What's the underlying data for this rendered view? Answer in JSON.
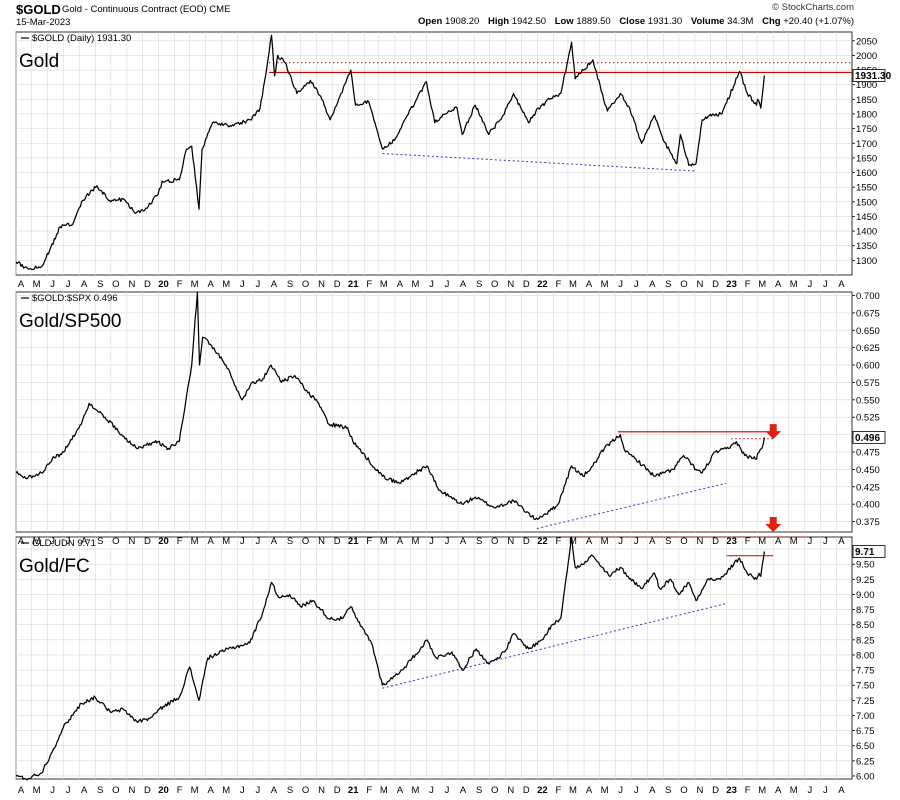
{
  "header": {
    "symbol": "$GOLD",
    "description": "Gold - Continuous Contract (EOD) CME",
    "date": "15-Mar-2023",
    "credit": "© StockCharts.com",
    "stats": [
      {
        "label": "Open",
        "value": "1908.20"
      },
      {
        "label": "High",
        "value": "1942.50"
      },
      {
        "label": "Low",
        "value": "1889.50"
      },
      {
        "label": "Close",
        "value": "1931.30"
      },
      {
        "label": "Volume",
        "value": "34.3M"
      },
      {
        "label": "Chg",
        "value": "+20.40 (+1.07%)"
      }
    ]
  },
  "colors": {
    "price_line": "#000000",
    "resistance": "#cc0000",
    "trendline": "#3333cc",
    "arrow": "#e02010",
    "grid": "#d8d8d8"
  },
  "x_axis": {
    "labels": [
      "A",
      "M",
      "J",
      "J",
      "A",
      "S",
      "O",
      "N",
      "D",
      "20",
      "F",
      "M",
      "A",
      "M",
      "J",
      "J",
      "A",
      "S",
      "O",
      "N",
      "D",
      "21",
      "F",
      "M",
      "A",
      "M",
      "J",
      "J",
      "A",
      "S",
      "O",
      "N",
      "D",
      "22",
      "F",
      "M",
      "A",
      "M",
      "J",
      "J",
      "A",
      "S",
      "O",
      "N",
      "D",
      "23",
      "F",
      "M",
      "A",
      "M",
      "J",
      "J",
      "A"
    ],
    "year_labels": [
      "20",
      "21",
      "22",
      "23"
    ]
  },
  "chart_data": [
    {
      "type": "line",
      "panel_label": "$GOLD (Daily) 1931.30",
      "title": "Gold",
      "last_value_label": "1931.30",
      "ylim": [
        1250,
        2080
      ],
      "y_ticks": [
        1300,
        1350,
        1400,
        1450,
        1500,
        1550,
        1600,
        1650,
        1700,
        1750,
        1800,
        1850,
        1900,
        1950,
        2000,
        2050
      ],
      "y_tick_labels": [
        "1300",
        "1350",
        "1400",
        "1450",
        "1500",
        "1550",
        "1600",
        "1650",
        "1700",
        "1750",
        "1800",
        "1850",
        "1900",
        "1950",
        "2000",
        "2050"
      ],
      "x_start": "2019-04-01",
      "x_end": "2023-08-31",
      "anchors": [
        [
          "2019-04-01",
          1295
        ],
        [
          "2019-04-25",
          1270
        ],
        [
          "2019-05-20",
          1278
        ],
        [
          "2019-06-05",
          1335
        ],
        [
          "2019-06-25",
          1415
        ],
        [
          "2019-07-20",
          1425
        ],
        [
          "2019-08-08",
          1505
        ],
        [
          "2019-09-04",
          1555
        ],
        [
          "2019-10-01",
          1500
        ],
        [
          "2019-10-25",
          1510
        ],
        [
          "2019-11-15",
          1465
        ],
        [
          "2019-12-05",
          1470
        ],
        [
          "2019-12-31",
          1525
        ],
        [
          "2020-01-08",
          1570
        ],
        [
          "2020-02-10",
          1575
        ],
        [
          "2020-02-24",
          1680
        ],
        [
          "2020-03-05",
          1690
        ],
        [
          "2020-03-19",
          1475
        ],
        [
          "2020-03-25",
          1680
        ],
        [
          "2020-04-14",
          1770
        ],
        [
          "2020-05-18",
          1760
        ],
        [
          "2020-06-26",
          1780
        ],
        [
          "2020-07-15",
          1820
        ],
        [
          "2020-07-28",
          1960
        ],
        [
          "2020-08-06",
          2069
        ],
        [
          "2020-08-12",
          1930
        ],
        [
          "2020-08-18",
          2000
        ],
        [
          "2020-09-01",
          1975
        ],
        [
          "2020-09-24",
          1870
        ],
        [
          "2020-10-20",
          1915
        ],
        [
          "2020-11-09",
          1860
        ],
        [
          "2020-11-27",
          1780
        ],
        [
          "2020-12-16",
          1860
        ],
        [
          "2021-01-06",
          1950
        ],
        [
          "2021-01-15",
          1830
        ],
        [
          "2021-02-10",
          1840
        ],
        [
          "2021-03-08",
          1680
        ],
        [
          "2021-03-31",
          1710
        ],
        [
          "2021-04-20",
          1780
        ],
        [
          "2021-05-10",
          1840
        ],
        [
          "2021-06-01",
          1910
        ],
        [
          "2021-06-17",
          1770
        ],
        [
          "2021-07-07",
          1800
        ],
        [
          "2021-07-30",
          1820
        ],
        [
          "2021-08-09",
          1730
        ],
        [
          "2021-09-03",
          1830
        ],
        [
          "2021-09-29",
          1730
        ],
        [
          "2021-10-25",
          1790
        ],
        [
          "2021-11-16",
          1870
        ],
        [
          "2021-12-15",
          1770
        ],
        [
          "2022-01-03",
          1820
        ],
        [
          "2022-01-25",
          1850
        ],
        [
          "2022-02-15",
          1870
        ],
        [
          "2022-03-08",
          2045
        ],
        [
          "2022-03-15",
          1920
        ],
        [
          "2022-03-31",
          1950
        ],
        [
          "2022-04-18",
          1985
        ],
        [
          "2022-05-16",
          1810
        ],
        [
          "2022-06-10",
          1870
        ],
        [
          "2022-06-28",
          1820
        ],
        [
          "2022-07-21",
          1700
        ],
        [
          "2022-08-15",
          1795
        ],
        [
          "2022-09-01",
          1710
        ],
        [
          "2022-09-27",
          1630
        ],
        [
          "2022-10-04",
          1730
        ],
        [
          "2022-10-20",
          1625
        ],
        [
          "2022-11-03",
          1630
        ],
        [
          "2022-11-15",
          1780
        ],
        [
          "2022-12-05",
          1800
        ],
        [
          "2022-12-23",
          1800
        ],
        [
          "2023-01-26",
          1945
        ],
        [
          "2023-02-10",
          1870
        ],
        [
          "2023-02-28",
          1830
        ],
        [
          "2023-03-02",
          1850
        ],
        [
          "2023-03-08",
          1820
        ],
        [
          "2023-03-15",
          1931.3
        ]
      ],
      "resistance_levels": [
        {
          "style": "solid",
          "value": 1942,
          "x_from": "2020-08-01",
          "x_to": "2023-08-31"
        },
        {
          "style": "dotted",
          "value": 1975,
          "x_from": "2020-08-01",
          "x_to": "2023-08-31"
        }
      ],
      "trendline": {
        "from": [
          "2021-03-08",
          1665
        ],
        "to": [
          "2022-11-03",
          1605
        ]
      }
    },
    {
      "type": "line",
      "panel_label": "$GOLD:$SPX 0.496",
      "title": "Gold/SP500",
      "last_value_label": "0.496",
      "ylim": [
        0.36,
        0.705
      ],
      "y_ticks": [
        0.375,
        0.4,
        0.425,
        0.45,
        0.475,
        0.5,
        0.525,
        0.55,
        0.575,
        0.6,
        0.625,
        0.65,
        0.675,
        0.7
      ],
      "y_tick_labels": [
        "0.375",
        "0.400",
        "0.425",
        "0.450",
        "0.475",
        "0.500",
        "0.525",
        "0.550",
        "0.575",
        "0.600",
        "0.625",
        "0.650",
        "0.675",
        "0.700"
      ],
      "x_start": "2019-04-01",
      "x_end": "2023-08-31",
      "anchors": [
        [
          "2019-04-01",
          0.445
        ],
        [
          "2019-04-20",
          0.437
        ],
        [
          "2019-05-20",
          0.445
        ],
        [
          "2019-06-10",
          0.465
        ],
        [
          "2019-07-02",
          0.475
        ],
        [
          "2019-08-05",
          0.515
        ],
        [
          "2019-08-20",
          0.545
        ],
        [
          "2019-09-20",
          0.525
        ],
        [
          "2019-10-15",
          0.505
        ],
        [
          "2019-11-20",
          0.48
        ],
        [
          "2019-12-31",
          0.49
        ],
        [
          "2020-01-20",
          0.48
        ],
        [
          "2020-02-10",
          0.49
        ],
        [
          "2020-02-25",
          0.56
        ],
        [
          "2020-03-05",
          0.6
        ],
        [
          "2020-03-16",
          0.705
        ],
        [
          "2020-03-20",
          0.6
        ],
        [
          "2020-03-26",
          0.64
        ],
        [
          "2020-04-10",
          0.63
        ],
        [
          "2020-05-10",
          0.6
        ],
        [
          "2020-06-10",
          0.55
        ],
        [
          "2020-06-30",
          0.575
        ],
        [
          "2020-07-20",
          0.58
        ],
        [
          "2020-08-05",
          0.6
        ],
        [
          "2020-08-25",
          0.575
        ],
        [
          "2020-09-20",
          0.585
        ],
        [
          "2020-10-15",
          0.56
        ],
        [
          "2020-11-05",
          0.545
        ],
        [
          "2020-11-25",
          0.515
        ],
        [
          "2020-12-31",
          0.51
        ],
        [
          "2021-01-10",
          0.49
        ],
        [
          "2021-03-08",
          0.44
        ],
        [
          "2021-04-10",
          0.43
        ],
        [
          "2021-05-10",
          0.445
        ],
        [
          "2021-06-02",
          0.455
        ],
        [
          "2021-06-25",
          0.42
        ],
        [
          "2021-08-09",
          0.4
        ],
        [
          "2021-09-03",
          0.41
        ],
        [
          "2021-10-10",
          0.395
        ],
        [
          "2021-11-16",
          0.405
        ],
        [
          "2021-12-28",
          0.378
        ],
        [
          "2022-01-25",
          0.39
        ],
        [
          "2022-02-10",
          0.4
        ],
        [
          "2022-03-08",
          0.455
        ],
        [
          "2022-03-30",
          0.44
        ],
        [
          "2022-04-18",
          0.455
        ],
        [
          "2022-05-10",
          0.48
        ],
        [
          "2022-06-10",
          0.5
        ],
        [
          "2022-06-20",
          0.475
        ],
        [
          "2022-07-10",
          0.465
        ],
        [
          "2022-08-15",
          0.44
        ],
        [
          "2022-09-20",
          0.45
        ],
        [
          "2022-10-10",
          0.47
        ],
        [
          "2022-11-03",
          0.45
        ],
        [
          "2022-11-15",
          0.445
        ],
        [
          "2022-12-10",
          0.475
        ],
        [
          "2023-01-05",
          0.48
        ],
        [
          "2023-01-20",
          0.49
        ],
        [
          "2023-02-05",
          0.47
        ],
        [
          "2023-02-28",
          0.465
        ],
        [
          "2023-03-02",
          0.473
        ],
        [
          "2023-03-10",
          0.48
        ],
        [
          "2023-03-15",
          0.496
        ]
      ],
      "resistance_levels": [
        {
          "style": "solid",
          "value": 0.504,
          "x_from": "2022-06-05",
          "x_to": "2023-04-01"
        },
        {
          "style": "dotted",
          "value": 0.494,
          "x_from": "2023-01-10",
          "x_to": "2023-04-01"
        }
      ],
      "trendline": {
        "from": [
          "2021-12-31",
          0.365
        ],
        "to": [
          "2022-12-31",
          0.43
        ]
      },
      "annotation": {
        "type": "arrow-down",
        "at": [
          "2023-04-01",
          0.515
        ]
      }
    },
    {
      "type": "line",
      "panel_label": "GLD:UDN 9.71",
      "title": "Gold/FC",
      "last_value_label": "9.71",
      "ylim": [
        5.95,
        9.95
      ],
      "y_ticks": [
        6,
        6.25,
        6.5,
        6.75,
        7,
        7.25,
        7.5,
        7.75,
        8,
        8.25,
        8.5,
        8.75,
        9,
        9.25,
        9.5,
        9.75
      ],
      "y_tick_labels": [
        "6.00",
        "6.25",
        "6.50",
        "6.75",
        "7.00",
        "7.25",
        "7.50",
        "7.75",
        "8.00",
        "8.25",
        "8.50",
        "8.75",
        "9.00",
        "9.25",
        "9.50",
        "9.75"
      ],
      "x_start": "2019-04-01",
      "x_end": "2023-08-31",
      "anchors": [
        [
          "2019-04-01",
          6.0
        ],
        [
          "2019-04-20",
          5.95
        ],
        [
          "2019-05-20",
          6.05
        ],
        [
          "2019-06-10",
          6.4
        ],
        [
          "2019-07-01",
          6.8
        ],
        [
          "2019-08-05",
          7.2
        ],
        [
          "2019-09-01",
          7.3
        ],
        [
          "2019-10-01",
          7.05
        ],
        [
          "2019-10-25",
          7.1
        ],
        [
          "2019-11-20",
          6.9
        ],
        [
          "2019-12-15",
          6.95
        ],
        [
          "2020-01-10",
          7.15
        ],
        [
          "2020-02-10",
          7.3
        ],
        [
          "2020-03-01",
          7.8
        ],
        [
          "2020-03-19",
          7.25
        ],
        [
          "2020-04-05",
          7.95
        ],
        [
          "2020-05-15",
          8.1
        ],
        [
          "2020-06-25",
          8.2
        ],
        [
          "2020-07-20",
          8.7
        ],
        [
          "2020-08-06",
          9.2
        ],
        [
          "2020-08-20",
          8.95
        ],
        [
          "2020-09-10",
          9.0
        ],
        [
          "2020-10-01",
          8.8
        ],
        [
          "2020-10-25",
          8.9
        ],
        [
          "2020-11-25",
          8.6
        ],
        [
          "2020-12-20",
          8.6
        ],
        [
          "2021-01-06",
          8.8
        ],
        [
          "2021-01-20",
          8.55
        ],
        [
          "2021-02-15",
          8.2
        ],
        [
          "2021-03-08",
          7.5
        ],
        [
          "2021-04-01",
          7.65
        ],
        [
          "2021-04-20",
          7.8
        ],
        [
          "2021-05-20",
          8.1
        ],
        [
          "2021-06-02",
          8.25
        ],
        [
          "2021-06-20",
          7.95
        ],
        [
          "2021-07-20",
          8.05
        ],
        [
          "2021-08-09",
          7.75
        ],
        [
          "2021-09-05",
          8.1
        ],
        [
          "2021-09-30",
          7.85
        ],
        [
          "2021-10-30",
          8.05
        ],
        [
          "2021-11-16",
          8.35
        ],
        [
          "2021-12-15",
          8.1
        ],
        [
          "2022-01-10",
          8.25
        ],
        [
          "2022-01-30",
          8.5
        ],
        [
          "2022-02-15",
          8.6
        ],
        [
          "2022-02-25",
          9.25
        ],
        [
          "2022-03-08",
          9.95
        ],
        [
          "2022-03-15",
          9.45
        ],
        [
          "2022-04-01",
          9.5
        ],
        [
          "2022-04-15",
          9.65
        ],
        [
          "2022-05-20",
          9.3
        ],
        [
          "2022-06-10",
          9.45
        ],
        [
          "2022-06-25",
          9.3
        ],
        [
          "2022-07-20",
          9.1
        ],
        [
          "2022-08-15",
          9.35
        ],
        [
          "2022-08-25",
          9.1
        ],
        [
          "2022-09-15",
          9.25
        ],
        [
          "2022-10-01",
          9.0
        ],
        [
          "2022-10-20",
          9.2
        ],
        [
          "2022-11-03",
          8.9
        ],
        [
          "2022-11-25",
          9.25
        ],
        [
          "2022-12-20",
          9.25
        ],
        [
          "2023-01-15",
          9.5
        ],
        [
          "2023-01-26",
          9.6
        ],
        [
          "2023-02-10",
          9.35
        ],
        [
          "2023-02-28",
          9.25
        ],
        [
          "2023-03-05",
          9.35
        ],
        [
          "2023-03-08",
          9.3
        ],
        [
          "2023-03-15",
          9.71
        ]
      ],
      "resistance_levels": [
        {
          "style": "solid",
          "value": 9.64,
          "x_from": "2023-01-01",
          "x_to": "2023-04-01"
        },
        {
          "style": "dotted",
          "value": 9.95,
          "x_from": "2022-03-01",
          "x_to": "2023-06-15"
        }
      ],
      "trendline": {
        "from": [
          "2021-03-08",
          7.45
        ],
        "to": [
          "2022-12-31",
          8.85
        ]
      },
      "annotation": {
        "type": "arrow-down",
        "at": [
          "2023-04-01",
          10.0
        ]
      }
    }
  ]
}
